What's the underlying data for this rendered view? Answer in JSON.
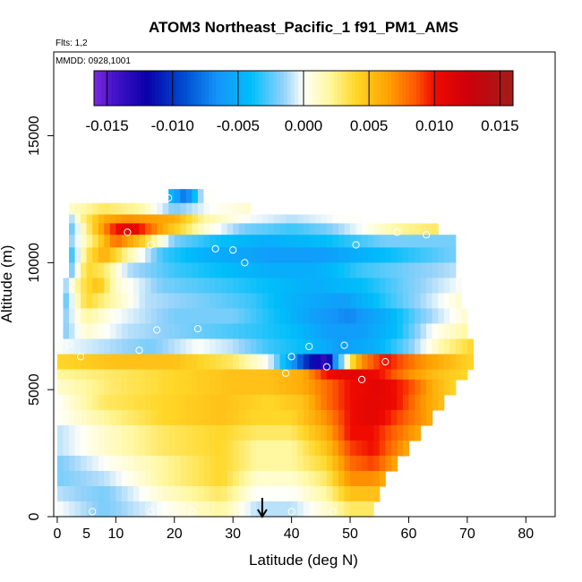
{
  "chart_data": {
    "type": "heatmap",
    "title": "ATOM3 Northeast_Pacific_1 f91_PM1_AMS",
    "subtitle": "Flts: 1,2",
    "note": "MMDD: 0928,1001",
    "xlabel": "Latitude (deg N)",
    "ylabel": "Altitude (m)",
    "xlim": [
      0,
      85
    ],
    "ylim": [
      0,
      18000
    ],
    "xticks": [
      0,
      10,
      20,
      30,
      40,
      50,
      60,
      70,
      80
    ],
    "xtick_labels": [
      "0",
      "5",
      "10",
      "20",
      "30",
      "40",
      "50",
      "60",
      "70",
      "80"
    ],
    "xtick_label_values": [
      0,
      5,
      10,
      20,
      30,
      40,
      50,
      60,
      70,
      80
    ],
    "yticks": [
      0,
      5000,
      10000,
      15000
    ],
    "ytick_labels": [
      "0",
      "5000",
      "10000",
      "15000"
    ],
    "colorbar": {
      "min": -0.016,
      "max": 0.016,
      "ticks": [
        -0.015,
        -0.01,
        -0.005,
        0.0,
        0.005,
        0.01,
        0.015
      ],
      "tick_labels": [
        "-0.015",
        "-0.010",
        "-0.005",
        "0.000",
        "0.005",
        "0.010",
        "0.015"
      ]
    },
    "marker_latitude": 35,
    "rows": [
      {
        "alt": [
          12350,
          12900
        ],
        "x0": 19,
        "x1": 27,
        "nodes": [
          [
            19,
            -0.004
          ],
          [
            22,
            -0.008
          ],
          [
            25,
            0.0
          ],
          [
            27,
            0.0
          ]
        ]
      },
      {
        "alt": [
          11900,
          12350
        ],
        "x0": 2,
        "x1": 33,
        "nodes": [
          [
            2,
            0.001
          ],
          [
            8,
            0.003
          ],
          [
            14,
            0.002
          ],
          [
            20,
            -0.002
          ],
          [
            26,
            0.0
          ],
          [
            33,
            0.001
          ]
        ]
      },
      {
        "alt": [
          11550,
          11900
        ],
        "x0": 2,
        "x1": 52,
        "nodes": [
          [
            2,
            -0.002
          ],
          [
            4,
            0.002
          ],
          [
            8,
            0.006
          ],
          [
            12,
            0.007
          ],
          [
            20,
            0.006
          ],
          [
            25,
            0.002
          ],
          [
            32,
            0.0
          ],
          [
            40,
            -0.001
          ],
          [
            48,
            0.0
          ],
          [
            52,
            0.0
          ]
        ]
      },
      {
        "alt": [
          11100,
          11550
        ],
        "x0": 2,
        "x1": 65,
        "nodes": [
          [
            2,
            -0.003
          ],
          [
            6,
            0.004
          ],
          [
            10,
            0.01
          ],
          [
            13,
            0.011
          ],
          [
            18,
            0.006
          ],
          [
            25,
            0.001
          ],
          [
            32,
            -0.002
          ],
          [
            40,
            -0.003
          ],
          [
            46,
            -0.002
          ],
          [
            52,
            0.0
          ],
          [
            58,
            0.002
          ],
          [
            65,
            0.003
          ]
        ]
      },
      {
        "alt": [
          10600,
          11100
        ],
        "x0": 2,
        "x1": 68,
        "nodes": [
          [
            2,
            -0.002
          ],
          [
            7,
            0.004
          ],
          [
            10,
            0.008
          ],
          [
            14,
            0.005
          ],
          [
            20,
            -0.002
          ],
          [
            28,
            -0.004
          ],
          [
            36,
            -0.005
          ],
          [
            46,
            -0.004
          ],
          [
            56,
            -0.002
          ],
          [
            62,
            -0.002
          ],
          [
            68,
            -0.002
          ]
        ]
      },
      {
        "alt": [
          10000,
          10600
        ],
        "x0": 2,
        "x1": 68,
        "nodes": [
          [
            2,
            -0.004
          ],
          [
            5,
            0.003
          ],
          [
            8,
            0.006
          ],
          [
            12,
            0.002
          ],
          [
            18,
            -0.003
          ],
          [
            26,
            -0.005
          ],
          [
            36,
            -0.006
          ],
          [
            46,
            -0.006
          ],
          [
            56,
            -0.004
          ],
          [
            62,
            -0.003
          ],
          [
            68,
            -0.002
          ]
        ]
      },
      {
        "alt": [
          9400,
          10000
        ],
        "x0": 2,
        "x1": 68,
        "nodes": [
          [
            2,
            -0.003
          ],
          [
            5,
            0.004
          ],
          [
            8,
            0.003
          ],
          [
            12,
            -0.001
          ],
          [
            20,
            -0.003
          ],
          [
            28,
            -0.004
          ],
          [
            36,
            -0.005
          ],
          [
            44,
            -0.005
          ],
          [
            52,
            -0.003
          ],
          [
            60,
            -0.002
          ],
          [
            68,
            -0.001
          ]
        ]
      },
      {
        "alt": [
          8800,
          9400
        ],
        "x0": 1,
        "x1": 69,
        "nodes": [
          [
            1,
            -0.002
          ],
          [
            4,
            0.003
          ],
          [
            7,
            0.005
          ],
          [
            10,
            0.001
          ],
          [
            18,
            -0.002
          ],
          [
            28,
            -0.003
          ],
          [
            36,
            -0.004
          ],
          [
            44,
            -0.005
          ],
          [
            52,
            -0.004
          ],
          [
            60,
            -0.002
          ],
          [
            69,
            0.0
          ]
        ]
      },
      {
        "alt": [
          8200,
          8800
        ],
        "x0": 1,
        "x1": 69,
        "nodes": [
          [
            1,
            -0.003
          ],
          [
            5,
            0.004
          ],
          [
            9,
            0.002
          ],
          [
            15,
            -0.001
          ],
          [
            25,
            -0.002
          ],
          [
            33,
            -0.003
          ],
          [
            41,
            -0.005
          ],
          [
            49,
            -0.006
          ],
          [
            57,
            -0.003
          ],
          [
            63,
            -0.001
          ],
          [
            69,
            0.001
          ]
        ]
      },
      {
        "alt": [
          7600,
          8200
        ],
        "x0": 1,
        "x1": 70,
        "nodes": [
          [
            1,
            -0.002
          ],
          [
            5,
            0.002
          ],
          [
            10,
            0.0
          ],
          [
            20,
            -0.002
          ],
          [
            30,
            -0.002
          ],
          [
            38,
            -0.004
          ],
          [
            44,
            -0.006
          ],
          [
            50,
            -0.007
          ],
          [
            56,
            -0.005
          ],
          [
            62,
            -0.002
          ],
          [
            70,
            0.001
          ]
        ]
      },
      {
        "alt": [
          7000,
          7600
        ],
        "x0": 1,
        "x1": 70,
        "nodes": [
          [
            1,
            -0.002
          ],
          [
            5,
            0.001
          ],
          [
            12,
            -0.001
          ],
          [
            22,
            -0.002
          ],
          [
            32,
            -0.003
          ],
          [
            40,
            -0.004
          ],
          [
            46,
            -0.006
          ],
          [
            52,
            -0.006
          ],
          [
            58,
            -0.004
          ],
          [
            64,
            0.0
          ],
          [
            70,
            0.002
          ]
        ]
      },
      {
        "alt": [
          6400,
          7000
        ],
        "x0": 0,
        "x1": 71,
        "nodes": [
          [
            0,
            0.0
          ],
          [
            8,
            -0.001
          ],
          [
            16,
            -0.002
          ],
          [
            24,
            0.0
          ],
          [
            30,
            -0.001
          ],
          [
            36,
            -0.003
          ],
          [
            42,
            -0.004
          ],
          [
            48,
            -0.006
          ],
          [
            54,
            -0.005
          ],
          [
            60,
            -0.002
          ],
          [
            66,
            0.002
          ],
          [
            71,
            0.004
          ]
        ]
      },
      {
        "alt": [
          5800,
          6400
        ],
        "x0": 0,
        "x1": 71,
        "nodes": [
          [
            0,
            0.004
          ],
          [
            10,
            0.005
          ],
          [
            20,
            0.005
          ],
          [
            30,
            0.003
          ],
          [
            36,
            0.0
          ],
          [
            40,
            -0.006
          ],
          [
            43,
            -0.011
          ],
          [
            46,
            -0.014
          ],
          [
            48,
            -0.004
          ],
          [
            50,
            0.003
          ],
          [
            52,
            0.007
          ],
          [
            56,
            0.01
          ],
          [
            62,
            0.007
          ],
          [
            68,
            0.005
          ],
          [
            71,
            0.004
          ]
        ]
      },
      {
        "alt": [
          5400,
          5800
        ],
        "x0": 0,
        "x1": 70,
        "nodes": [
          [
            0,
            0.002
          ],
          [
            10,
            0.003
          ],
          [
            20,
            0.004
          ],
          [
            30,
            0.005
          ],
          [
            36,
            0.005
          ],
          [
            42,
            0.006
          ],
          [
            46,
            0.01
          ],
          [
            50,
            0.011
          ],
          [
            55,
            0.01
          ],
          [
            60,
            0.007
          ],
          [
            65,
            0.005
          ],
          [
            70,
            0.004
          ]
        ]
      },
      {
        "alt": [
          4800,
          5400
        ],
        "x0": 0,
        "x1": 68,
        "nodes": [
          [
            0,
            0.001
          ],
          [
            10,
            0.003
          ],
          [
            20,
            0.004
          ],
          [
            30,
            0.005
          ],
          [
            36,
            0.005
          ],
          [
            42,
            0.006
          ],
          [
            46,
            0.008
          ],
          [
            50,
            0.01
          ],
          [
            55,
            0.011
          ],
          [
            60,
            0.009
          ],
          [
            64,
            0.006
          ],
          [
            68,
            0.004
          ]
        ]
      },
      {
        "alt": [
          4200,
          4800
        ],
        "x0": 0,
        "x1": 66,
        "nodes": [
          [
            0,
            0.0
          ],
          [
            8,
            0.003
          ],
          [
            18,
            0.004
          ],
          [
            28,
            0.005
          ],
          [
            36,
            0.004
          ],
          [
            42,
            0.005
          ],
          [
            46,
            0.008
          ],
          [
            50,
            0.01
          ],
          [
            54,
            0.011
          ],
          [
            58,
            0.01
          ],
          [
            62,
            0.007
          ],
          [
            66,
            0.005
          ]
        ]
      },
      {
        "alt": [
          3600,
          4200
        ],
        "x0": 0,
        "x1": 64,
        "nodes": [
          [
            0,
            0.0
          ],
          [
            8,
            0.002
          ],
          [
            18,
            0.004
          ],
          [
            28,
            0.005
          ],
          [
            34,
            0.004
          ],
          [
            40,
            0.004
          ],
          [
            46,
            0.007
          ],
          [
            50,
            0.01
          ],
          [
            54,
            0.011
          ],
          [
            58,
            0.009
          ],
          [
            64,
            0.006
          ]
        ]
      },
      {
        "alt": [
          3000,
          3600
        ],
        "x0": 0,
        "x1": 62,
        "nodes": [
          [
            0,
            -0.001
          ],
          [
            8,
            0.001
          ],
          [
            18,
            0.003
          ],
          [
            28,
            0.004
          ],
          [
            34,
            0.003
          ],
          [
            40,
            0.003
          ],
          [
            46,
            0.006
          ],
          [
            50,
            0.01
          ],
          [
            54,
            0.01
          ],
          [
            58,
            0.008
          ],
          [
            62,
            0.006
          ]
        ]
      },
      {
        "alt": [
          2400,
          3000
        ],
        "x0": 0,
        "x1": 60,
        "nodes": [
          [
            0,
            -0.001
          ],
          [
            8,
            0.001
          ],
          [
            18,
            0.003
          ],
          [
            28,
            0.004
          ],
          [
            34,
            0.002
          ],
          [
            40,
            0.002
          ],
          [
            46,
            0.005
          ],
          [
            50,
            0.009
          ],
          [
            54,
            0.01
          ],
          [
            57,
            0.008
          ],
          [
            60,
            0.006
          ]
        ]
      },
      {
        "alt": [
          1800,
          2400
        ],
        "x0": 0,
        "x1": 58,
        "nodes": [
          [
            0,
            -0.002
          ],
          [
            8,
            0.0
          ],
          [
            18,
            0.002
          ],
          [
            28,
            0.004
          ],
          [
            34,
            0.002
          ],
          [
            40,
            0.002
          ],
          [
            46,
            0.004
          ],
          [
            50,
            0.008
          ],
          [
            54,
            0.009
          ],
          [
            58,
            0.006
          ]
        ]
      },
      {
        "alt": [
          1200,
          1800
        ],
        "x0": 0,
        "x1": 56,
        "nodes": [
          [
            0,
            -0.002
          ],
          [
            8,
            -0.001
          ],
          [
            18,
            0.002
          ],
          [
            28,
            0.004
          ],
          [
            34,
            0.001
          ],
          [
            40,
            0.001
          ],
          [
            46,
            0.003
          ],
          [
            50,
            0.007
          ],
          [
            54,
            0.007
          ],
          [
            56,
            0.006
          ]
        ]
      },
      {
        "alt": [
          600,
          1200
        ],
        "x0": 0,
        "x1": 55,
        "nodes": [
          [
            0,
            -0.001
          ],
          [
            8,
            -0.002
          ],
          [
            18,
            0.001
          ],
          [
            28,
            0.003
          ],
          [
            34,
            0.0
          ],
          [
            40,
            0.0
          ],
          [
            46,
            0.002
          ],
          [
            50,
            0.005
          ],
          [
            55,
            0.005
          ]
        ]
      },
      {
        "alt": [
          0,
          600
        ],
        "x0": 0,
        "x1": 54,
        "nodes": [
          [
            0,
            0.0
          ],
          [
            8,
            -0.002
          ],
          [
            18,
            0.0
          ],
          [
            28,
            0.002
          ],
          [
            34,
            -0.001
          ],
          [
            40,
            -0.001
          ],
          [
            46,
            0.001
          ],
          [
            50,
            0.003
          ],
          [
            54,
            0.003
          ]
        ]
      }
    ],
    "flight_points": [
      [
        1,
        11900
      ],
      [
        19,
        12550
      ],
      [
        12,
        11200
      ],
      [
        16,
        10700
      ],
      [
        27,
        10550
      ],
      [
        30,
        10500
      ],
      [
        32,
        10000
      ],
      [
        51,
        10700
      ],
      [
        58,
        11200
      ],
      [
        63,
        11100
      ],
      [
        8,
        7400
      ],
      [
        17,
        7350
      ],
      [
        24,
        7400
      ],
      [
        14,
        6550
      ],
      [
        2,
        6800
      ],
      [
        4,
        6300
      ],
      [
        40,
        6300
      ],
      [
        43,
        6700
      ],
      [
        49,
        6750
      ],
      [
        46,
        5900
      ],
      [
        39,
        5650
      ],
      [
        56,
        6100
      ],
      [
        52,
        5400
      ],
      [
        6,
        200
      ],
      [
        16,
        200
      ],
      [
        23,
        200
      ],
      [
        40,
        200
      ],
      [
        47,
        200
      ]
    ]
  }
}
